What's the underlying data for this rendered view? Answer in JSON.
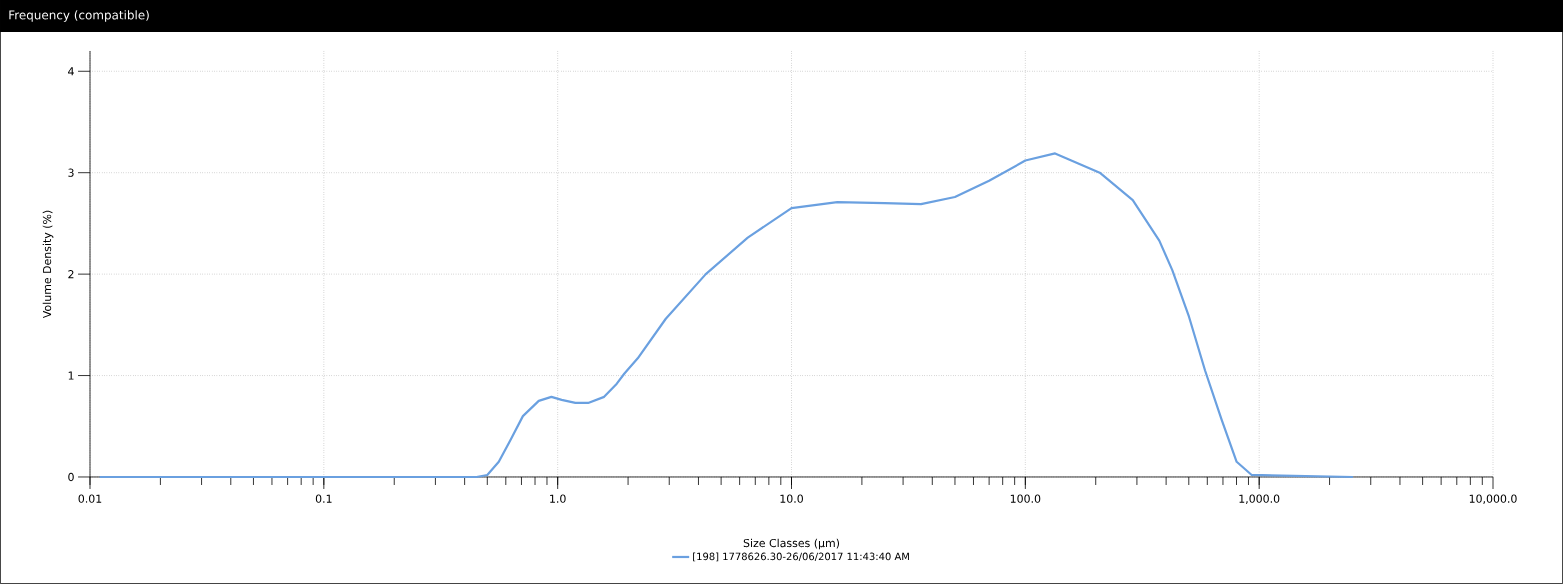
{
  "chart_data": {
    "type": "line",
    "title": "Frequency (compatible)",
    "xlabel": "Size Classes (µm)",
    "ylabel": "Volume Density (%)",
    "log": "x",
    "xlim": [
      0.01,
      10000
    ],
    "ylim": [
      0,
      4.2
    ],
    "xticks": [
      {
        "value": 0.01,
        "label": "0.01"
      },
      {
        "value": 0.1,
        "label": "0.1"
      },
      {
        "value": 1,
        "label": "1.0"
      },
      {
        "value": 10,
        "label": "10.0"
      },
      {
        "value": 100,
        "label": "100.0"
      },
      {
        "value": 1000,
        "label": "1,000.0"
      },
      {
        "value": 10000,
        "label": "10,000.0"
      }
    ],
    "yticks": [
      0,
      1,
      2,
      3,
      4
    ],
    "grid": true,
    "legend": "bottom",
    "marker": "none",
    "line_style": "solid",
    "series": [
      {
        "name": "[198] 1778626.30-26/06/2017 11:43:40 AM",
        "color": "#6aa0e0",
        "x": [
          0.011,
          0.1,
          0.45,
          0.5,
          0.56,
          0.63,
          0.71,
          0.83,
          0.94,
          1.04,
          1.19,
          1.35,
          1.58,
          1.79,
          1.93,
          2.2,
          2.9,
          4.3,
          6.5,
          10,
          15.7,
          25,
          35.8,
          50,
          70,
          100,
          134,
          208,
          288,
          374,
          425,
          501,
          587,
          692,
          801,
          929,
          2518
        ],
        "values": [
          0,
          0,
          0,
          0.02,
          0.15,
          0.37,
          0.6,
          0.75,
          0.79,
          0.76,
          0.73,
          0.73,
          0.79,
          0.92,
          1.02,
          1.17,
          1.56,
          2.0,
          2.36,
          2.65,
          2.71,
          2.7,
          2.69,
          2.76,
          2.92,
          3.12,
          3.19,
          3.0,
          2.73,
          2.33,
          2.04,
          1.58,
          1.05,
          0.56,
          0.15,
          0.02,
          0
        ]
      }
    ]
  }
}
